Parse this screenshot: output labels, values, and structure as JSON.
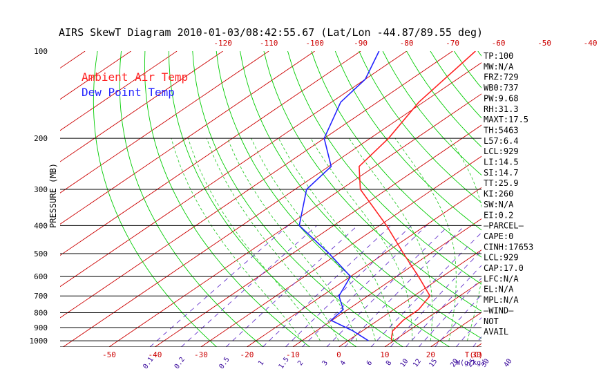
{
  "chart_data": {
    "type": "line",
    "title": "AIRS SkewT Diagram 2010-01-03/08:42:55.67 (Lat/Lon -44.87/89.55 deg)",
    "ylabel": "PRESSURE (MB)",
    "xlabel": "T(C)",
    "mixing_ratio_unit": "W(g/kg)",
    "y_scale": "log",
    "ylim": [
      1050,
      100
    ],
    "xlim_bottom": [
      -55,
      40
    ],
    "pressure_ticks": [
      {
        "value": 100,
        "label": "100"
      },
      {
        "value": 200,
        "label": "200"
      },
      {
        "value": 300,
        "label": "300"
      },
      {
        "value": 400,
        "label": "400"
      },
      {
        "value": 500,
        "label": "500"
      },
      {
        "value": 600,
        "label": "600"
      },
      {
        "value": 700,
        "label": "700"
      },
      {
        "value": 800,
        "label": "800"
      },
      {
        "value": 900,
        "label": "900"
      },
      {
        "value": 1000,
        "label": "1000"
      }
    ],
    "top_temp_ticks": [
      {
        "value": -120,
        "label": "-120"
      },
      {
        "value": -110,
        "label": "-110"
      },
      {
        "value": -100,
        "label": "-100"
      },
      {
        "value": -90,
        "label": "-90"
      },
      {
        "value": -80,
        "label": "-80"
      },
      {
        "value": -70,
        "label": "-70"
      },
      {
        "value": -60,
        "label": "-60"
      },
      {
        "value": -50,
        "label": "-50"
      },
      {
        "value": -40,
        "label": "-40"
      }
    ],
    "bottom_temp_ticks": [
      {
        "value": -50,
        "label": "-50"
      },
      {
        "value": -40,
        "label": "-40"
      },
      {
        "value": -30,
        "label": "-30"
      },
      {
        "value": -20,
        "label": "-20"
      },
      {
        "value": -10,
        "label": "-10"
      },
      {
        "value": 0,
        "label": "0"
      },
      {
        "value": 10,
        "label": "10"
      },
      {
        "value": 20,
        "label": "20"
      },
      {
        "value": 30,
        "label": "30"
      }
    ],
    "mixing_ratio_ticks": [
      "0.1",
      "0.2",
      "0.5",
      "1",
      "1.5",
      "2",
      "3",
      "4",
      "6",
      "8",
      "10",
      "12",
      "15",
      "20",
      "25",
      "30",
      "40"
    ],
    "series": [
      {
        "name": "Ambient Air Temp",
        "color": "#ff2222",
        "points": [
          {
            "p": 1000,
            "t": 9.5
          },
          {
            "p": 975,
            "t": 8.5
          },
          {
            "p": 925,
            "t": 6.6
          },
          {
            "p": 850,
            "t": 5.5
          },
          {
            "p": 780,
            "t": 5.4
          },
          {
            "p": 700,
            "t": 3.5
          },
          {
            "p": 600,
            "t": -5.2
          },
          {
            "p": 500,
            "t": -15.8
          },
          {
            "p": 400,
            "t": -28.5
          },
          {
            "p": 300,
            "t": -45.8
          },
          {
            "p": 250,
            "t": -53.4
          },
          {
            "p": 200,
            "t": -56.0
          },
          {
            "p": 150,
            "t": -61.0
          },
          {
            "p": 100,
            "t": -65.0
          }
        ]
      },
      {
        "name": "Dew Point Temp",
        "color": "#2222ff",
        "points": [
          {
            "p": 1000,
            "t": 4.5
          },
          {
            "p": 925,
            "t": -2.0
          },
          {
            "p": 850,
            "t": -10.2
          },
          {
            "p": 780,
            "t": -11.0
          },
          {
            "p": 700,
            "t": -16.3
          },
          {
            "p": 600,
            "t": -20.0
          },
          {
            "p": 500,
            "t": -32.0
          },
          {
            "p": 400,
            "t": -47.5
          },
          {
            "p": 300,
            "t": -57.5
          },
          {
            "p": 250,
            "t": -59.5
          },
          {
            "p": 200,
            "t": -70.0
          },
          {
            "p": 150,
            "t": -78.0
          },
          {
            "p": 125,
            "t": -80.0
          },
          {
            "p": 100,
            "t": -86.0
          }
        ]
      }
    ],
    "grid": true
  },
  "side_panel": [
    "TP:100",
    "MW:N/A",
    "FRZ:729",
    "WB0:737",
    "PW:9.68",
    "RH:31.3",
    "MAXT:17.5",
    "TH:5463",
    "L57:6.4",
    "LCL:929",
    "LI:14.5",
    "SI:14.7",
    "TT:25.9",
    "KI:260",
    "SW:N/A",
    "EI:0.2",
    "–PARCEL–",
    "CAPE:0",
    "CINH:17653",
    "LCL:929",
    "CAP:17.0",
    "LFC:N/A",
    "EL:N/A",
    "MPL:N/A",
    "–WIND–",
    "NOT",
    "AVAIL"
  ],
  "colors": {
    "isotherm": "#cc0000",
    "dry_adiabat": "#00cc00",
    "moist_adiabat": "#33cc33",
    "mixing_ratio": "#6633cc",
    "isobar": "#000000"
  }
}
